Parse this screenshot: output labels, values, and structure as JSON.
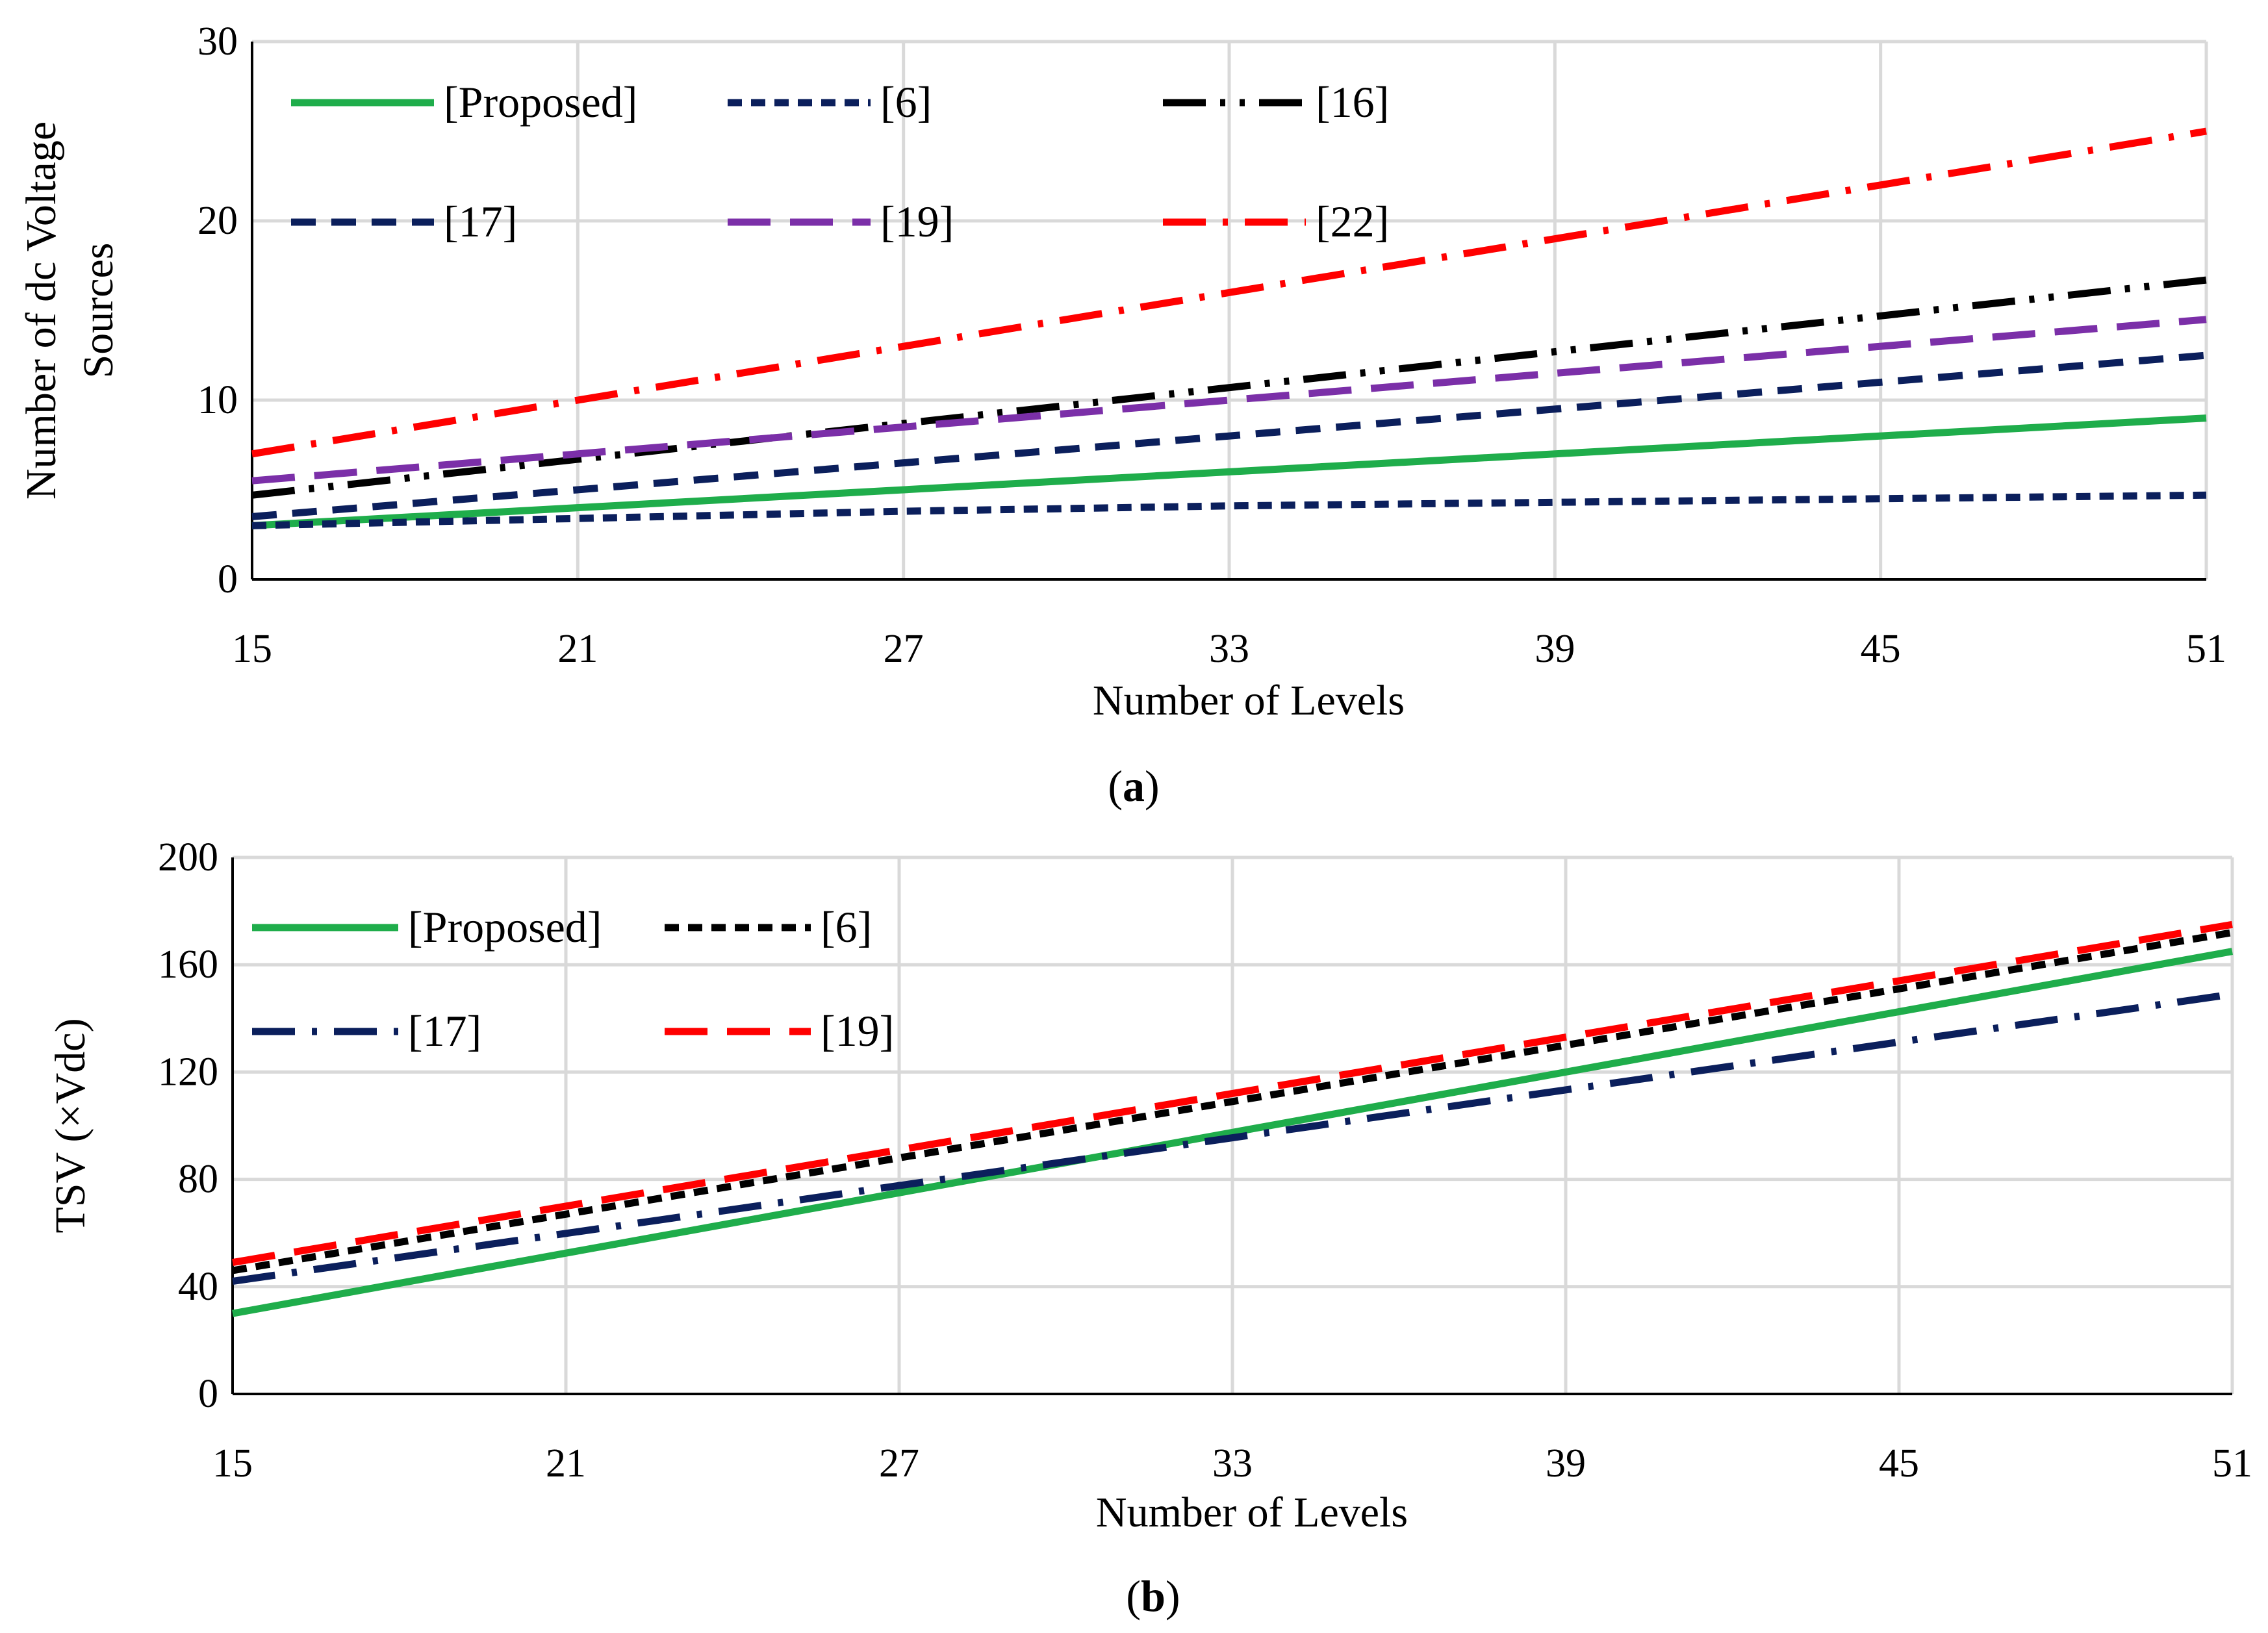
{
  "chart_data": [
    {
      "type": "line",
      "caption_letter": "a",
      "xlabel": "Number of Levels",
      "ylabel_lines": [
        "Number of dc Voltage",
        "Sources"
      ],
      "xlim": [
        15,
        51
      ],
      "ylim": [
        0,
        30
      ],
      "xticks": [
        15,
        21,
        27,
        33,
        39,
        45,
        51
      ],
      "yticks": [
        0,
        10,
        20,
        30
      ],
      "grid": true,
      "legend": "top-left",
      "series": [
        {
          "name": "[Proposed]",
          "color": "#1fad4b",
          "style": "solid",
          "x": [
            15,
            51
          ],
          "y": [
            3,
            9
          ]
        },
        {
          "name": "[6]",
          "color": "#0b1f5c",
          "style": "short-dash",
          "x": [
            15,
            21,
            27,
            33,
            39,
            45,
            51
          ],
          "y": [
            3,
            3.4,
            3.8,
            4.1,
            4.3,
            4.5,
            4.7
          ]
        },
        {
          "name": "[16]",
          "color": "#000000",
          "style": "long-dash-dot-dot",
          "x": [
            15,
            51
          ],
          "y": [
            4.7,
            16.7
          ]
        },
        {
          "name": "[17]",
          "color": "#0b1f5c",
          "style": "dash",
          "x": [
            15,
            51
          ],
          "y": [
            3.5,
            12.5
          ]
        },
        {
          "name": "[19]",
          "color": "#7b2fa8",
          "style": "long-dash",
          "x": [
            15,
            51
          ],
          "y": [
            5.5,
            14.5
          ]
        },
        {
          "name": "[22]",
          "color": "#ff0000",
          "style": "long-dash-dot",
          "x": [
            15,
            51
          ],
          "y": [
            7,
            25
          ]
        }
      ]
    },
    {
      "type": "line",
      "caption_letter": "b",
      "xlabel": "Number of Levels",
      "ylabel_lines": [
        "TSV (×Vdc)"
      ],
      "xlim": [
        15,
        51
      ],
      "ylim": [
        0,
        200
      ],
      "xticks": [
        15,
        21,
        27,
        33,
        39,
        45,
        51
      ],
      "yticks": [
        0,
        40,
        80,
        120,
        160,
        200
      ],
      "grid": true,
      "legend": "top-left",
      "series": [
        {
          "name": "[Proposed]",
          "color": "#1fad4b",
          "style": "solid",
          "x": [
            15,
            51
          ],
          "y": [
            30,
            165
          ]
        },
        {
          "name": "[6]",
          "color": "#000000",
          "style": "short-dash",
          "x": [
            15,
            51
          ],
          "y": [
            46,
            172
          ]
        },
        {
          "name": "[17]",
          "color": "#0b1f5c",
          "style": "long-dash-dot",
          "x": [
            15,
            51
          ],
          "y": [
            42,
            149
          ]
        },
        {
          "name": "[19]",
          "color": "#ff0000",
          "style": "long-dash",
          "x": [
            15,
            51
          ],
          "y": [
            49,
            175
          ]
        }
      ]
    }
  ]
}
